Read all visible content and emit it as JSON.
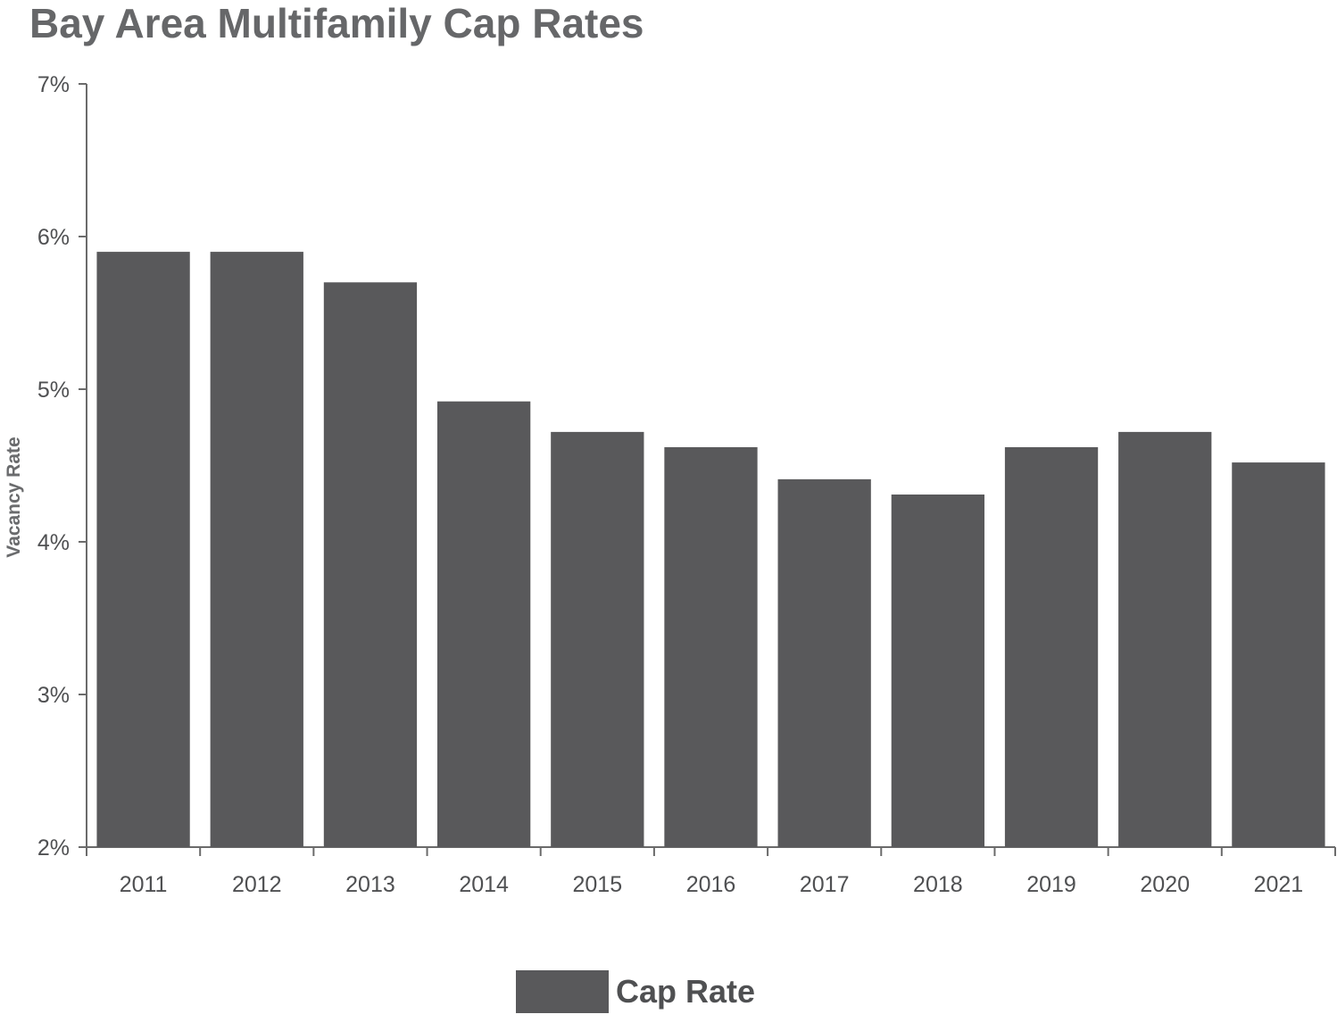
{
  "chart_data": {
    "type": "bar",
    "title": "Bay Area Multifamily Cap Rates",
    "xlabel": "",
    "ylabel": "Vacancy Rate",
    "categories": [
      "2011",
      "2012",
      "2013",
      "2014",
      "2015",
      "2016",
      "2017",
      "2018",
      "2019",
      "2020",
      "2021"
    ],
    "series": [
      {
        "name": "Cap Rate",
        "values": [
          5.9,
          5.9,
          5.7,
          4.92,
          4.72,
          4.62,
          4.41,
          4.31,
          4.62,
          4.72,
          4.52
        ]
      }
    ],
    "ylim": [
      2,
      7
    ],
    "yticks": [
      {
        "value": 2,
        "label": "2%"
      },
      {
        "value": 3,
        "label": "3%"
      },
      {
        "value": 4,
        "label": "4%"
      },
      {
        "value": 5,
        "label": "5%"
      },
      {
        "value": 6,
        "label": "6%"
      },
      {
        "value": 7,
        "label": "7%"
      }
    ],
    "grid": false,
    "legend": {
      "placement": "bottom-center",
      "label": "Cap Rate"
    },
    "colors": {
      "bar": "#59595b",
      "text": "#4f5052",
      "title": "#666769",
      "axis": "#6b6b6b"
    }
  }
}
